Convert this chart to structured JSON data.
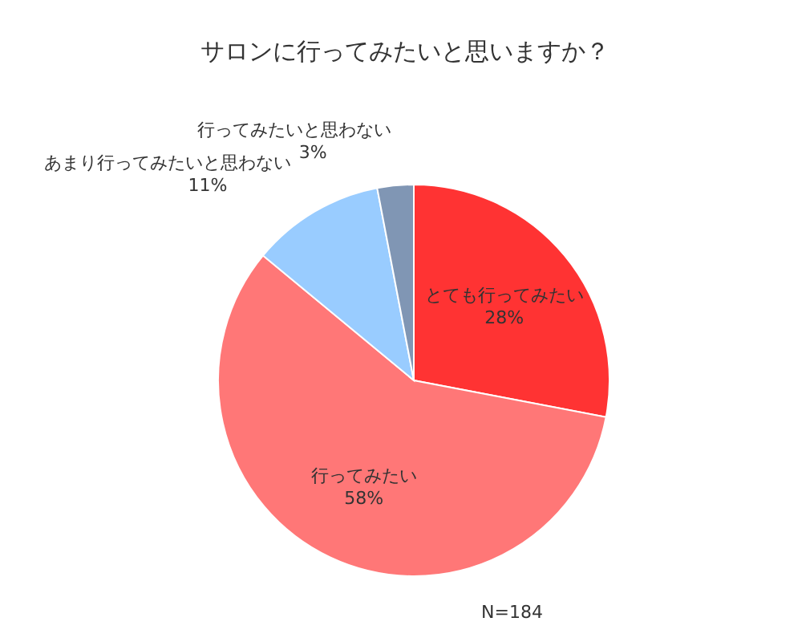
{
  "chart_data": {
    "type": "pie",
    "title": "サロンに行ってみたいと思いますか？",
    "categories": [
      "とても行ってみたい",
      "行ってみたい",
      "あまり行ってみたいと思わない",
      "行ってみたいと思わない"
    ],
    "values": [
      28,
      58,
      11,
      3
    ],
    "value_labels": [
      "28%",
      "58%",
      "11%",
      "3%"
    ],
    "colors": [
      "#ff3333",
      "#ff7777",
      "#99ccff",
      "#8096b4"
    ],
    "annotations": [
      "N=184"
    ]
  }
}
